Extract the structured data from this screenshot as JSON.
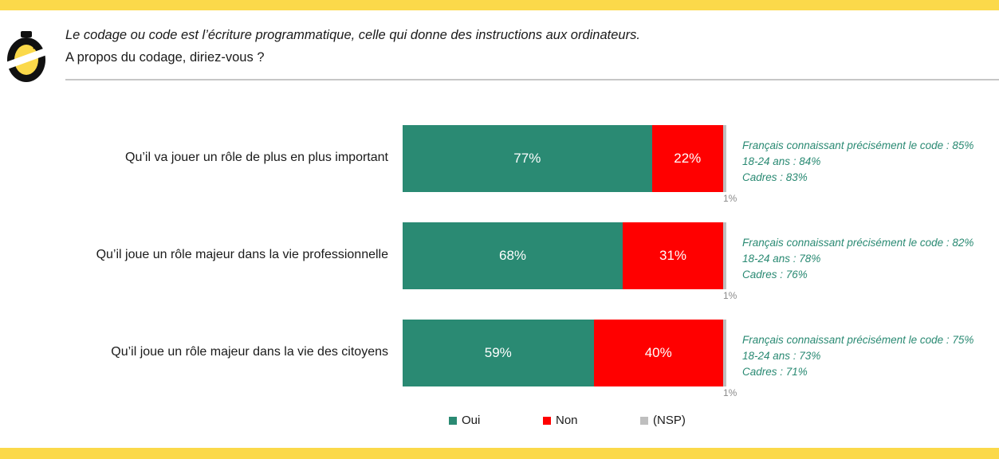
{
  "header": {
    "line1": "Le codage ou code est l’écriture programmatique, celle qui donne des instructions aux ordinateurs.",
    "line2": "A propos du codage, diriez-vous ?"
  },
  "colors": {
    "oui": "#2a8a73",
    "non": "#ff0000",
    "nsp": "#bfbfbf",
    "note_text": "#2a8a73",
    "band": "#fbd94a"
  },
  "chart_data": {
    "type": "bar",
    "orientation": "horizontal",
    "stacked": true,
    "categories": [
      "Qu’il va jouer un rôle de plus en plus important",
      "Qu’il joue un rôle majeur dans la vie professionnelle",
      "Qu’il joue un rôle majeur dans la vie des citoyens"
    ],
    "series": [
      {
        "name": "Oui",
        "values": [
          77,
          68,
          59
        ],
        "labels": [
          "77%",
          "68%",
          "59%"
        ]
      },
      {
        "name": "Non",
        "values": [
          22,
          31,
          40
        ],
        "labels": [
          "22%",
          "31%",
          "40%"
        ]
      },
      {
        "name": "(NSP)",
        "values": [
          1,
          1,
          1
        ],
        "labels": [
          "1%",
          "1%",
          "1%"
        ]
      }
    ],
    "annotations": [
      [
        "Français connaissant précisément le code : 85%",
        "18-24 ans : 84%",
        "Cadres : 83%"
      ],
      [
        "Français connaissant précisément le code : 82%",
        "18-24 ans : 78%",
        "Cadres : 76%"
      ],
      [
        "Français connaissant précisément le code : 75%",
        "18-24 ans : 73%",
        "Cadres : 71%"
      ]
    ],
    "legend_position": "bottom",
    "unit": "%"
  }
}
